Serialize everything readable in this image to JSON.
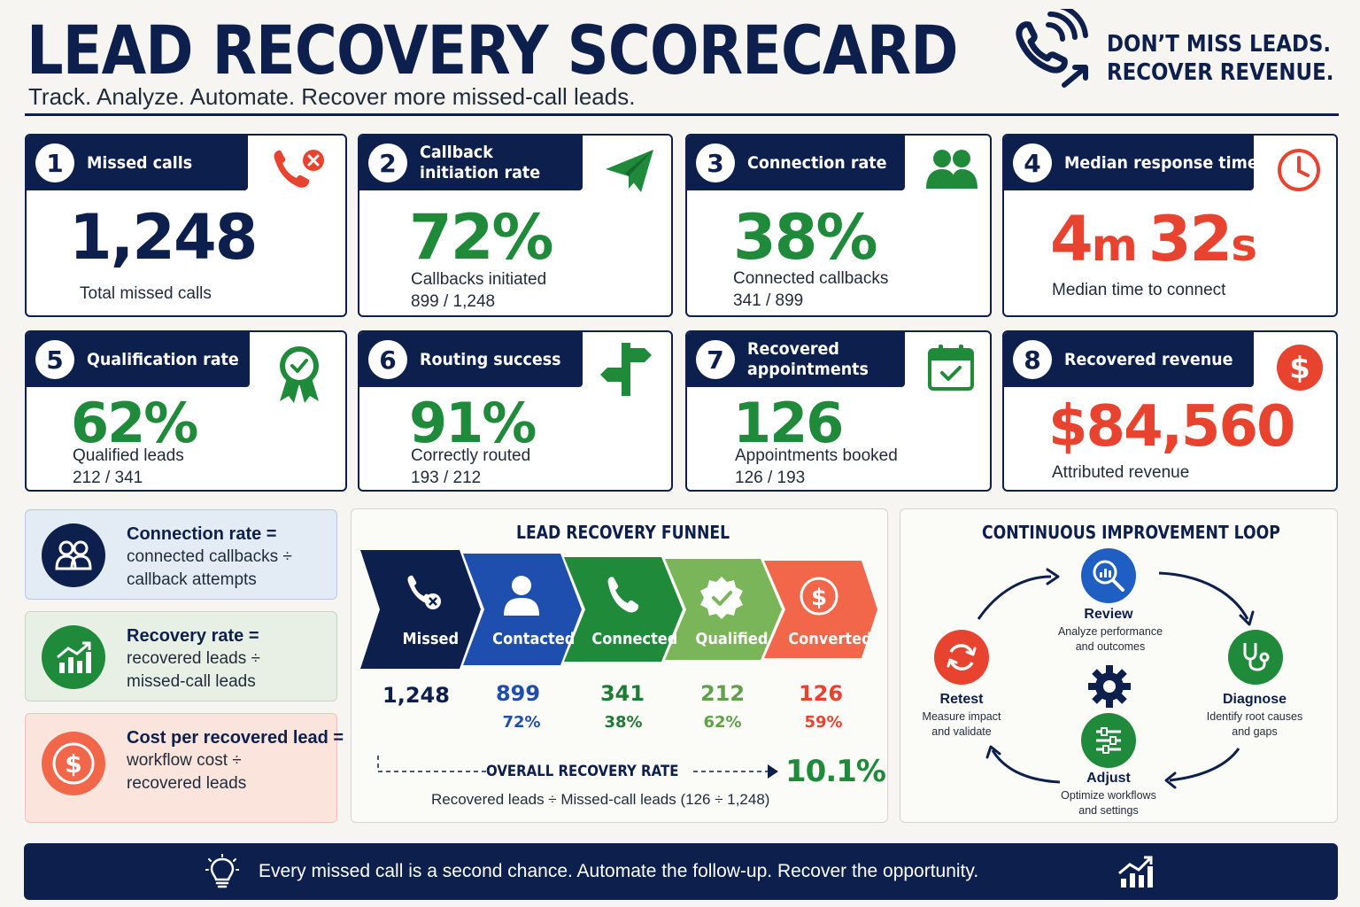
{
  "header": {
    "title": "LEAD RECOVERY SCORECARD",
    "subtitle": "Track. Analyze. Automate. Recover more missed-call leads.",
    "tagline_line1": "DON’T MISS LEADS.",
    "tagline_line2": "RECOVER REVENUE."
  },
  "kpis": [
    {
      "num": "1",
      "label": "Missed calls",
      "value": "1,248",
      "sub1": "Total missed calls",
      "sub2": "",
      "icon": "missed-call-icon"
    },
    {
      "num": "2",
      "label_line1": "Callback",
      "label_line2": "initiation rate",
      "value": "72%",
      "sub1": "Callbacks initiated",
      "sub2": "899 / 1,248",
      "icon": "paper-plane-icon"
    },
    {
      "num": "3",
      "label": "Connection rate",
      "value": "38%",
      "sub1": "Connected callbacks",
      "sub2": "341 / 899",
      "icon": "people-icon"
    },
    {
      "num": "4",
      "label": "Median response time",
      "value_min": "4",
      "value_min_unit": "m",
      "value_sec": "32",
      "value_sec_unit": "s",
      "sub1": "Median time to connect",
      "sub2": "",
      "icon": "clock-icon"
    },
    {
      "num": "5",
      "label": "Qualification rate",
      "value": "62%",
      "sub1": "Qualified leads",
      "sub2": "212 / 341",
      "icon": "award-badge-icon"
    },
    {
      "num": "6",
      "label": "Routing success",
      "value": "91%",
      "sub1": "Correctly routed",
      "sub2": "193 / 212",
      "icon": "signpost-icon"
    },
    {
      "num": "7",
      "label_line1": "Recovered",
      "label_line2": "appointments",
      "value": "126",
      "sub1": "Appointments booked",
      "sub2": "126 / 193",
      "icon": "calendar-check-icon"
    },
    {
      "num": "8",
      "label": "Recovered revenue",
      "value": "$84,560",
      "sub1": "Attributed revenue",
      "sub2": "",
      "icon": "dollar-icon"
    }
  ],
  "formulas": [
    {
      "title": "Connection rate =",
      "line1": "connected callbacks ÷",
      "line2": "callback attempts",
      "icon": "people-icon"
    },
    {
      "title": "Recovery rate =",
      "line1": "recovered leads ÷",
      "line2": "missed-call leads",
      "icon": "growth-chart-icon"
    },
    {
      "title": "Cost per recovered lead =",
      "line1": "workflow cost ÷",
      "line2": "recovered leads",
      "icon": "dollar-icon"
    }
  ],
  "funnel": {
    "title": "LEAD RECOVERY FUNNEL",
    "stages": [
      {
        "label": "Missed",
        "value": "1,248",
        "pct": "",
        "color": "#0c1f4d",
        "text_color": "#0c1f4d"
      },
      {
        "label": "Contacted",
        "value": "899",
        "pct": "72%",
        "color": "#1f4fae",
        "text_color": "#1f4fae"
      },
      {
        "label": "Connected",
        "value": "341",
        "pct": "38%",
        "color": "#1f8a3a",
        "text_color": "#1f7a34"
      },
      {
        "label": "Qualified",
        "value": "212",
        "pct": "62%",
        "color": "#7ab55a",
        "text_color": "#5fa048"
      },
      {
        "label": "Converted",
        "value": "126",
        "pct": "59%",
        "color": "#f2664a",
        "text_color": "#e8432e"
      }
    ],
    "overall_label": "OVERALL RECOVERY RATE",
    "overall_value": "10.1%",
    "overall_formula": "Recovered leads ÷ Missed-call leads (126 ÷ 1,248)"
  },
  "loop": {
    "title": "CONTINUOUS IMPROVEMENT LOOP",
    "steps": [
      {
        "title": "Review",
        "line1": "Analyze performance",
        "line2": "and outcomes",
        "color": "#1f5fc4",
        "icon": "magnifier-chart-icon"
      },
      {
        "title": "Diagnose",
        "line1": "Identify root causes",
        "line2": "and gaps",
        "color": "#1f8a3a",
        "icon": "stethoscope-icon"
      },
      {
        "title": "Adjust",
        "line1": "Optimize workflows",
        "line2": "and settings",
        "color": "#1f8a3a",
        "icon": "sliders-icon"
      },
      {
        "title": "Retest",
        "line1": "Measure impact",
        "line2": "and validate",
        "color": "#e8432e",
        "icon": "refresh-icon"
      }
    ]
  },
  "footer": {
    "text": "Every missed call is a second chance. Automate the follow-up. Recover the opportunity."
  },
  "colors": {
    "navy": "#0c1f4d",
    "green": "#1f8a3a",
    "red": "#e8432e",
    "blue": "#1f4fae"
  }
}
